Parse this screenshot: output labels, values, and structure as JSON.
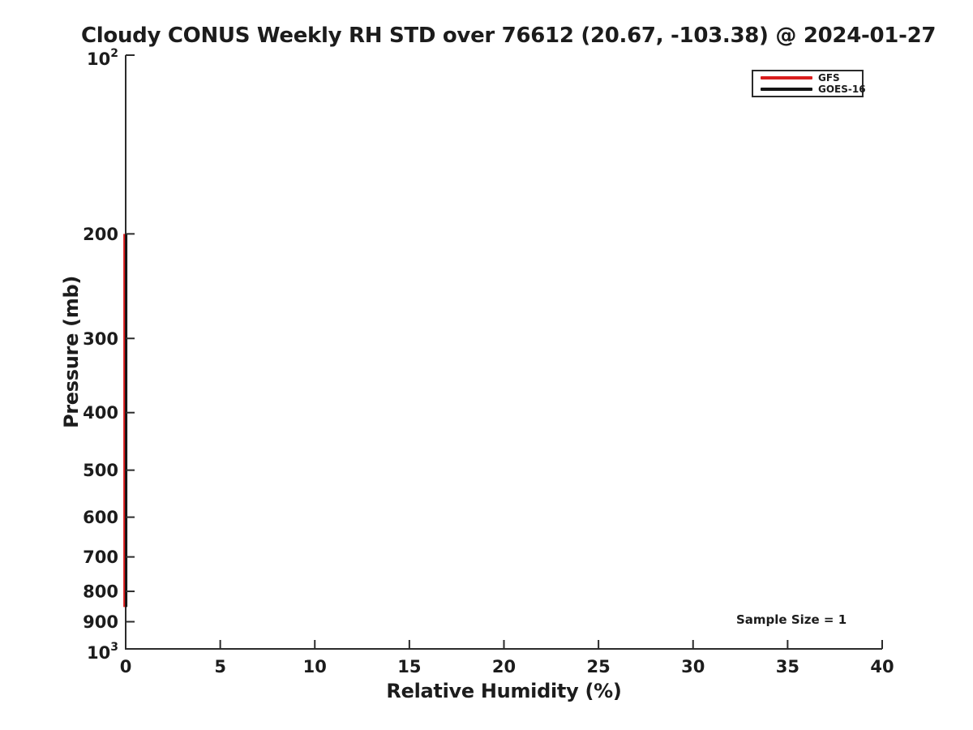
{
  "chart_data": {
    "type": "line",
    "title": "Cloudy CONUS Weekly RH STD over 76612 (20.67, -103.38) @ 2024-01-27",
    "xlabel": "Relative Humidity (%)",
    "ylabel": "Pressure (mb)",
    "xlim": [
      0,
      40
    ],
    "ylim_pressure_mb": [
      1000,
      100
    ],
    "yscale": "log",
    "grid": false,
    "xticks": [
      0,
      5,
      10,
      15,
      20,
      25,
      30,
      35,
      40
    ],
    "yticks": [
      {
        "value": 100,
        "label": "10^2"
      },
      {
        "value": 200,
        "label": "200"
      },
      {
        "value": 300,
        "label": "300"
      },
      {
        "value": 400,
        "label": "400"
      },
      {
        "value": 500,
        "label": "500"
      },
      {
        "value": 600,
        "label": "600"
      },
      {
        "value": 700,
        "label": "700"
      },
      {
        "value": 800,
        "label": "800"
      },
      {
        "value": 900,
        "label": "900"
      },
      {
        "value": 1000,
        "label": "10^3"
      }
    ],
    "series": [
      {
        "name": "GFS",
        "color": "#d91d1d",
        "rh_std_percent": [
          0,
          0
        ],
        "pressure_mb": [
          200,
          850
        ]
      },
      {
        "name": "GOES-16",
        "color": "#141414",
        "rh_std_percent": [
          0,
          0
        ],
        "pressure_mb": [
          200,
          850
        ]
      }
    ],
    "legend": {
      "position": "top-right",
      "entries": [
        {
          "label": "GFS",
          "color": "#d91d1d"
        },
        {
          "label": "GOES-16",
          "color": "#141414"
        }
      ]
    },
    "annotation": {
      "text": "Sample Size = 1"
    },
    "colors": {
      "background": "#ffffff",
      "axis": "#2b2b2b",
      "text": "#1c1c1c"
    }
  }
}
